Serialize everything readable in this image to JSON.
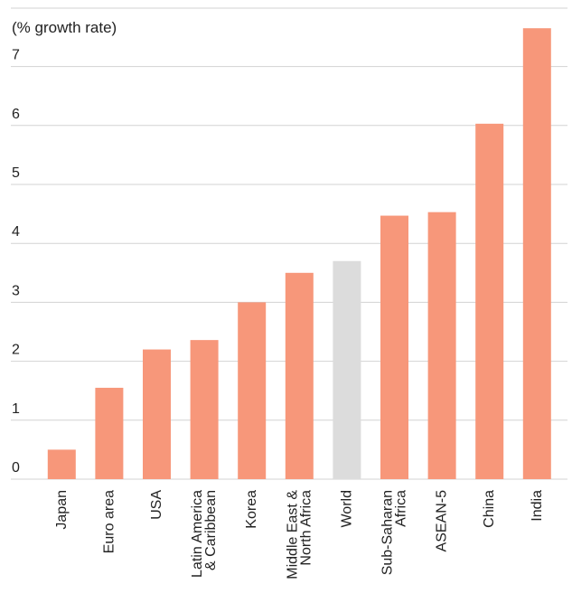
{
  "chart_data": {
    "type": "bar",
    "ylabel": "(% growth rate)",
    "xlabel": "",
    "ylim": [
      0,
      7.6
    ],
    "yticks": [
      0,
      1,
      2,
      3,
      4,
      5,
      6,
      7
    ],
    "grid": "horizontal",
    "categories": [
      [
        "Japan"
      ],
      [
        "Euro area"
      ],
      [
        "USA"
      ],
      [
        "Latin America",
        "& Caribbean"
      ],
      [
        "Korea"
      ],
      [
        "Middle East &",
        "North Africa"
      ],
      [
        "World"
      ],
      [
        "Sub-Saharan",
        "Africa"
      ],
      [
        "ASEAN-5"
      ],
      [
        "China"
      ],
      [
        "India"
      ]
    ],
    "values": [
      0.5,
      1.55,
      2.2,
      2.36,
      3.0,
      3.5,
      3.7,
      4.47,
      4.53,
      6.03,
      7.65
    ],
    "colors": {
      "bar": "#f7977a",
      "highlight": "#dcdcdc",
      "grid": "#d3d3d3"
    },
    "highlight_category": "World"
  }
}
